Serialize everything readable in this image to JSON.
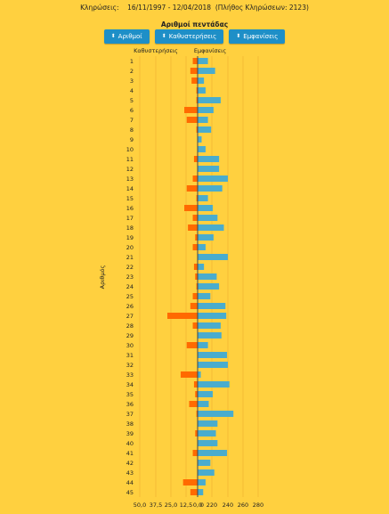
{
  "header": {
    "draws_label": "Κληρώσεις:",
    "date_range": "16/11/1997 - 12/04/2018",
    "draws_count": "(Πλήθος Κληρώσεων: 2123)"
  },
  "buttons": [
    {
      "label": "Αριθμοί",
      "icon": "sort-arrows-icon"
    },
    {
      "label": "Καθυστερήσεις",
      "icon": "sort-arrows-icon"
    },
    {
      "label": "Εμφανίσεις",
      "icon": "sort-arrows-icon"
    }
  ],
  "chart_data": {
    "type": "bar",
    "title": "Αριθμοί πεντάδας",
    "ylabel": "Αριθμός",
    "left_label": "Καθυστερήσεις",
    "right_label": "Εμφανίσεις",
    "left_ticks": [
      "50,0",
      "37,5",
      "25,0",
      "12,5",
      "0,0"
    ],
    "right_ticks": [
      "0",
      "220",
      "240",
      "260",
      "280"
    ],
    "colors": {
      "delays": "#FF6A00",
      "appearances": "#4AACCD"
    },
    "categories": [
      "1",
      "2",
      "3",
      "4",
      "5",
      "6",
      "7",
      "8",
      "9",
      "10",
      "11",
      "12",
      "13",
      "14",
      "15",
      "16",
      "17",
      "18",
      "19",
      "20",
      "21",
      "22",
      "23",
      "24",
      "25",
      "26",
      "27",
      "28",
      "29",
      "30",
      "31",
      "32",
      "33",
      "34",
      "35",
      "36",
      "37",
      "38",
      "39",
      "40",
      "41",
      "42",
      "43",
      "44",
      "45"
    ],
    "series": [
      {
        "name": "Καθυστερήσεις",
        "values": [
          4,
          6,
          5,
          1,
          1,
          11,
          9,
          1,
          0,
          0,
          3,
          0,
          4,
          9,
          1,
          11,
          4,
          8,
          2,
          4,
          0,
          3,
          2,
          1,
          4,
          6,
          25,
          4,
          0,
          9,
          0,
          0,
          14,
          3,
          2,
          7,
          1,
          0,
          2,
          0,
          4,
          0,
          0,
          12,
          6
        ]
      },
      {
        "name": "Εμφανίσεις",
        "values": [
          218,
          227,
          213,
          215,
          234,
          225,
          218,
          222,
          210,
          215,
          232,
          232,
          243,
          236,
          218,
          224,
          230,
          238,
          225,
          215,
          243,
          213,
          229,
          232,
          221,
          240,
          241,
          234,
          235,
          218,
          242,
          243,
          209,
          245,
          224,
          219,
          250,
          230,
          228,
          230,
          242,
          221,
          226,
          215,
          212
        ]
      }
    ]
  }
}
